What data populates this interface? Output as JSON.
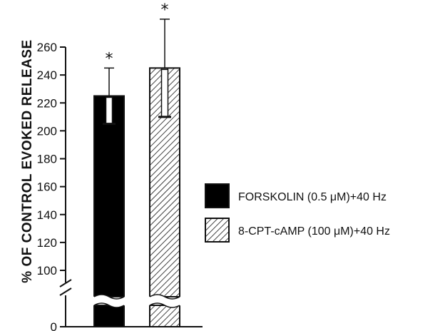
{
  "chart_data": {
    "type": "bar",
    "ylabel": "% OF CONTROL EVOKED RELEASE",
    "y_ticks": [
      0,
      100,
      120,
      140,
      160,
      180,
      200,
      220,
      240,
      260
    ],
    "ylim": [
      0,
      260
    ],
    "y_axis_break": true,
    "grid": false,
    "legend_position": "right",
    "series": [
      {
        "name": "FORSKOLIN (0.5 μM)+40 Hz",
        "value": 225,
        "error": 20,
        "fill": "solid",
        "color": "#000000",
        "significance": "*"
      },
      {
        "name": "8-CPT-cAMP (100 μM)+40 Hz",
        "value": 245,
        "error": 35,
        "fill": "hatched",
        "color": "#000000",
        "significance": "*"
      }
    ]
  }
}
